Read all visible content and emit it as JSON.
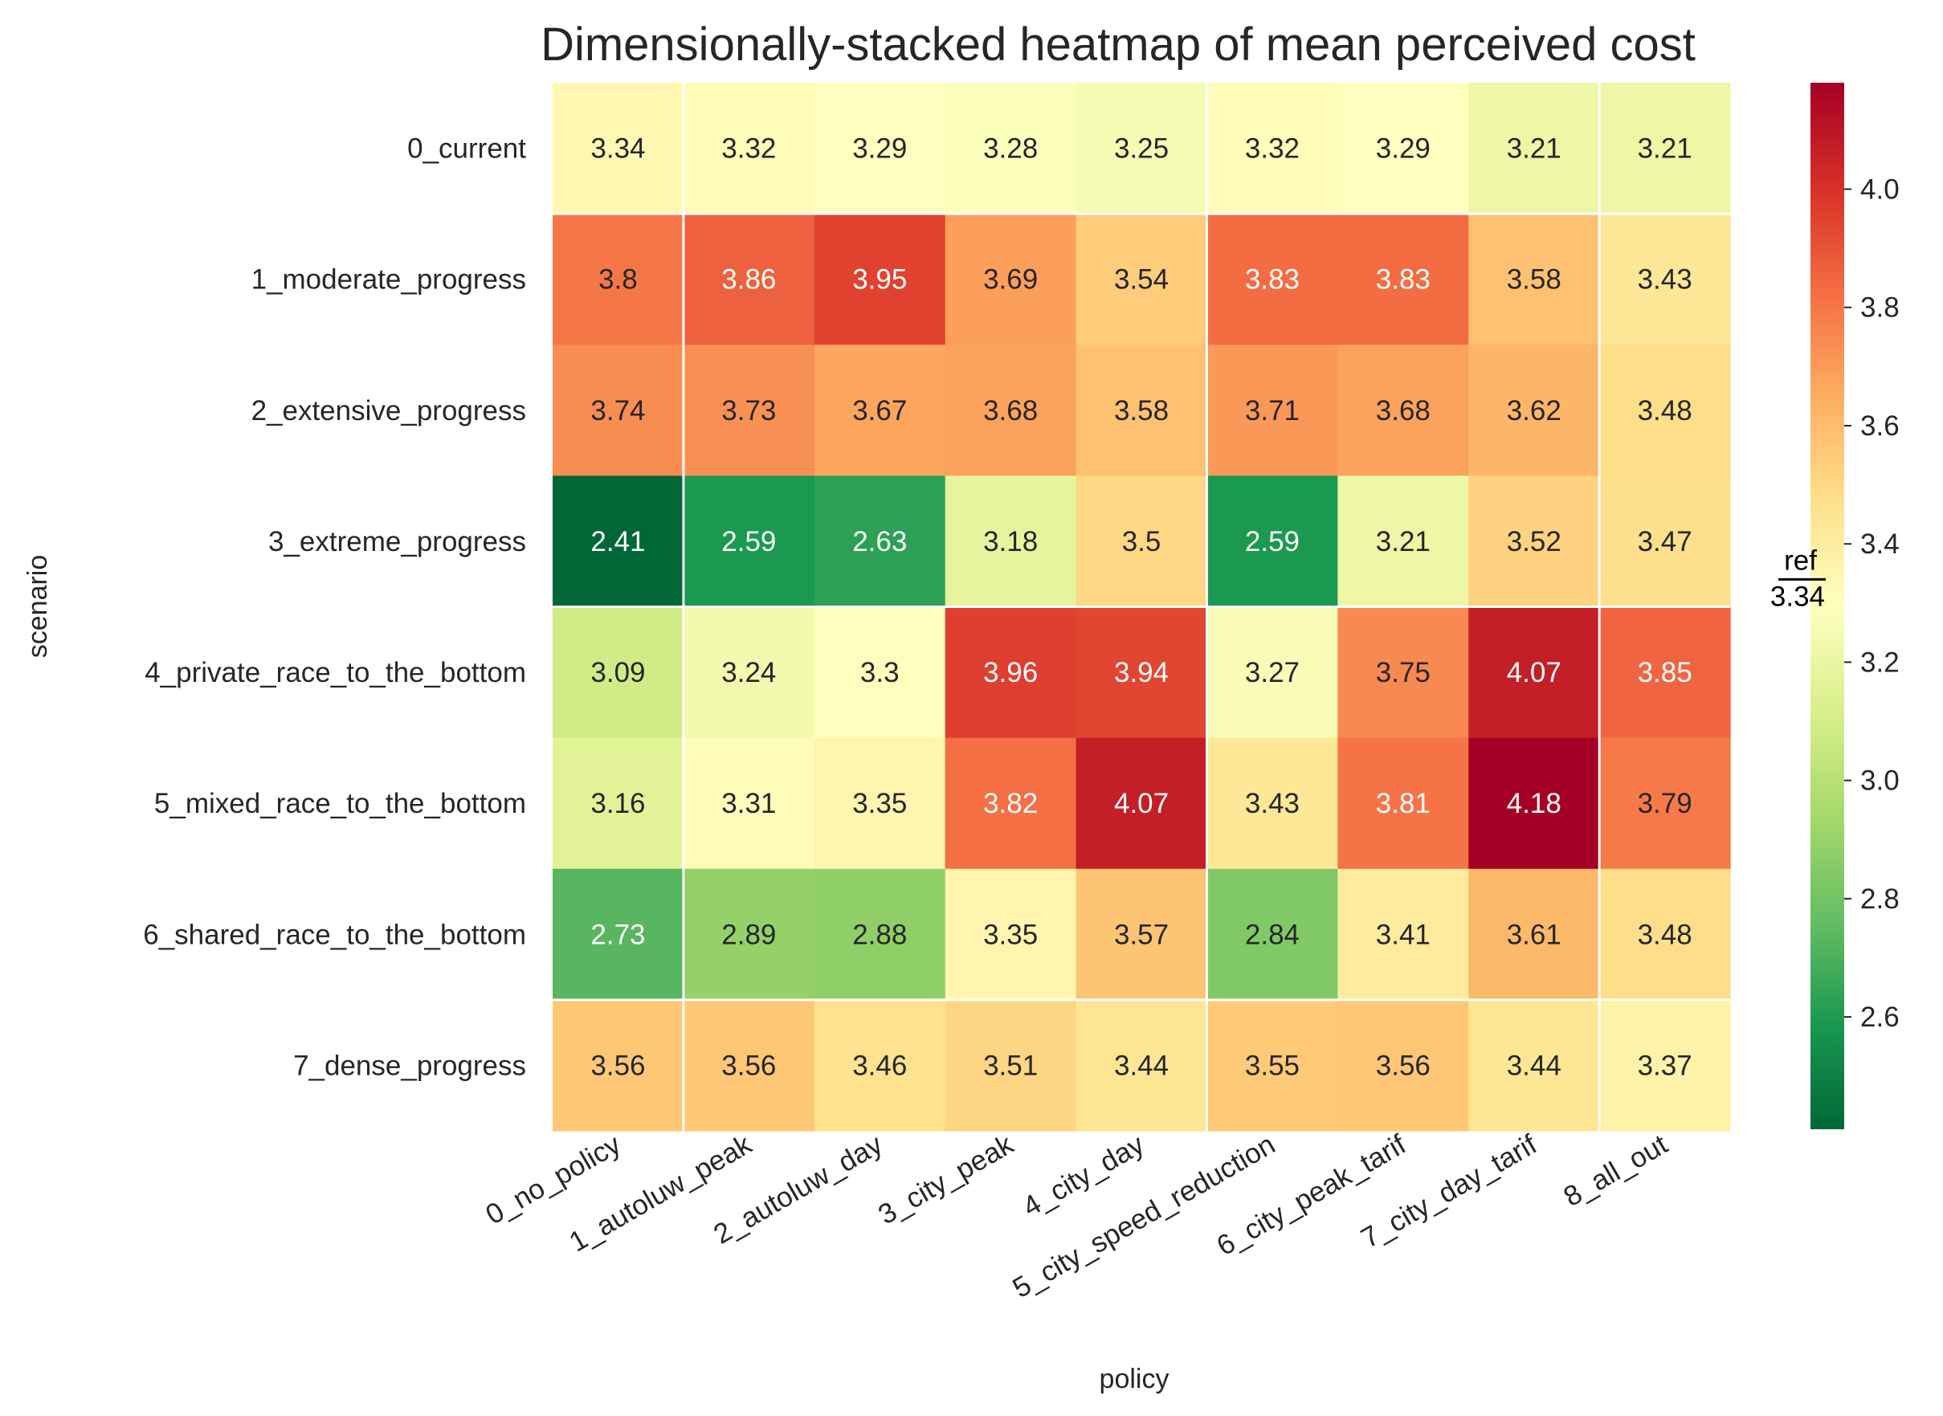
{
  "chart_data": {
    "type": "heatmap",
    "title": "Dimensionally-stacked heatmap of mean perceived cost",
    "xlabel": "policy",
    "ylabel": "scenario",
    "x_categories": [
      "0_no_policy",
      "1_autoluw_peak",
      "2_autoluw_day",
      "3_city_peak",
      "4_city_day",
      "5_city_speed_reduction",
      "6_city_peak_tarif",
      "7_city_day_tarif",
      "8_all_out"
    ],
    "y_categories": [
      "0_current",
      "1_moderate_progress",
      "2_extensive_progress",
      "3_extreme_progress",
      "4_private_race_to_the_bottom",
      "5_mixed_race_to_the_bottom",
      "6_shared_race_to_the_bottom",
      "7_dense_progress"
    ],
    "values": [
      [
        3.34,
        3.32,
        3.29,
        3.28,
        3.25,
        3.32,
        3.29,
        3.21,
        3.21
      ],
      [
        3.8,
        3.86,
        3.95,
        3.69,
        3.54,
        3.83,
        3.83,
        3.58,
        3.43
      ],
      [
        3.74,
        3.73,
        3.67,
        3.68,
        3.58,
        3.71,
        3.68,
        3.62,
        3.48
      ],
      [
        2.41,
        2.59,
        2.63,
        3.18,
        3.5,
        2.59,
        3.21,
        3.52,
        3.47
      ],
      [
        3.09,
        3.24,
        3.3,
        3.96,
        3.94,
        3.27,
        3.75,
        4.07,
        3.85
      ],
      [
        3.16,
        3.31,
        3.35,
        3.82,
        4.07,
        3.43,
        3.81,
        4.18,
        3.79
      ],
      [
        2.73,
        2.89,
        2.88,
        3.35,
        3.57,
        2.84,
        3.41,
        3.61,
        3.48
      ],
      [
        3.56,
        3.56,
        3.46,
        3.51,
        3.44,
        3.55,
        3.56,
        3.44,
        3.37
      ]
    ],
    "colormap": "RdYlGn_r",
    "color_range": [
      2.41,
      4.18
    ],
    "colorbar_ticks": [
      "2.6",
      "2.8",
      "3.0",
      "3.2",
      "3.4",
      "3.6",
      "3.8",
      "4.0"
    ],
    "reference_marker": {
      "label": "ref",
      "value": 3.34,
      "value_text": "3.34"
    },
    "group_separators": {
      "columns_after": [
        0,
        4,
        7
      ],
      "rows_after": [
        0,
        3,
        6
      ]
    }
  }
}
